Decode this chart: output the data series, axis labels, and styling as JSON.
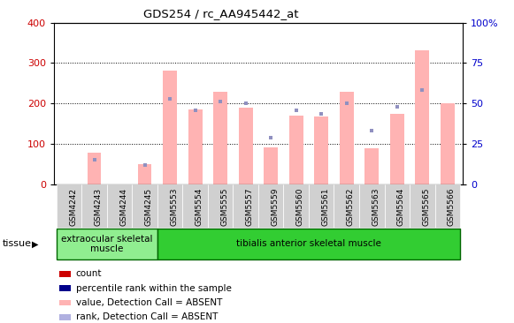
{
  "title": "GDS254 / rc_AA945442_at",
  "categories": [
    "GSM4242",
    "GSM4243",
    "GSM4244",
    "GSM4245",
    "GSM5553",
    "GSM5554",
    "GSM5555",
    "GSM5557",
    "GSM5559",
    "GSM5560",
    "GSM5561",
    "GSM5562",
    "GSM5563",
    "GSM5564",
    "GSM5565",
    "GSM5566"
  ],
  "pink_bars": [
    0,
    78,
    0,
    50,
    282,
    185,
    228,
    190,
    92,
    170,
    168,
    228,
    88,
    175,
    332,
    200
  ],
  "blue_dots_left": [
    0,
    60,
    0,
    48,
    212,
    182,
    205,
    200,
    115,
    182,
    175,
    200,
    132,
    192,
    232,
    0
  ],
  "left_ylim": [
    0,
    400
  ],
  "right_ylim": [
    0,
    100
  ],
  "left_yticks": [
    0,
    100,
    200,
    300,
    400
  ],
  "right_yticks": [
    0,
    25,
    50,
    75,
    100
  ],
  "right_yticklabels": [
    "0",
    "25",
    "50",
    "75",
    "100%"
  ],
  "left_tick_color": "#cc0000",
  "right_tick_color": "#0000cc",
  "tissue_groups": [
    {
      "text": "extraocular skeletal\nmuscle",
      "start": 0,
      "end": 3,
      "color": "#90ee90"
    },
    {
      "text": "tibialis anterior skeletal muscle",
      "start": 4,
      "end": 15,
      "color": "#32cd32"
    }
  ],
  "tissue_label": "tissue",
  "legend_colors": [
    "#cc0000",
    "#00008b",
    "#ffb3b3",
    "#b0b0e0"
  ],
  "legend_labels": [
    "count",
    "percentile rank within the sample",
    "value, Detection Call = ABSENT",
    "rank, Detection Call = ABSENT"
  ],
  "pink_color": "#ffb3b3",
  "blue_color": "#9090c0",
  "bar_width": 0.55,
  "grid_dotted_color": "#000000",
  "xticklabel_bg": "#d0d0d0",
  "spine_color": "#000000"
}
